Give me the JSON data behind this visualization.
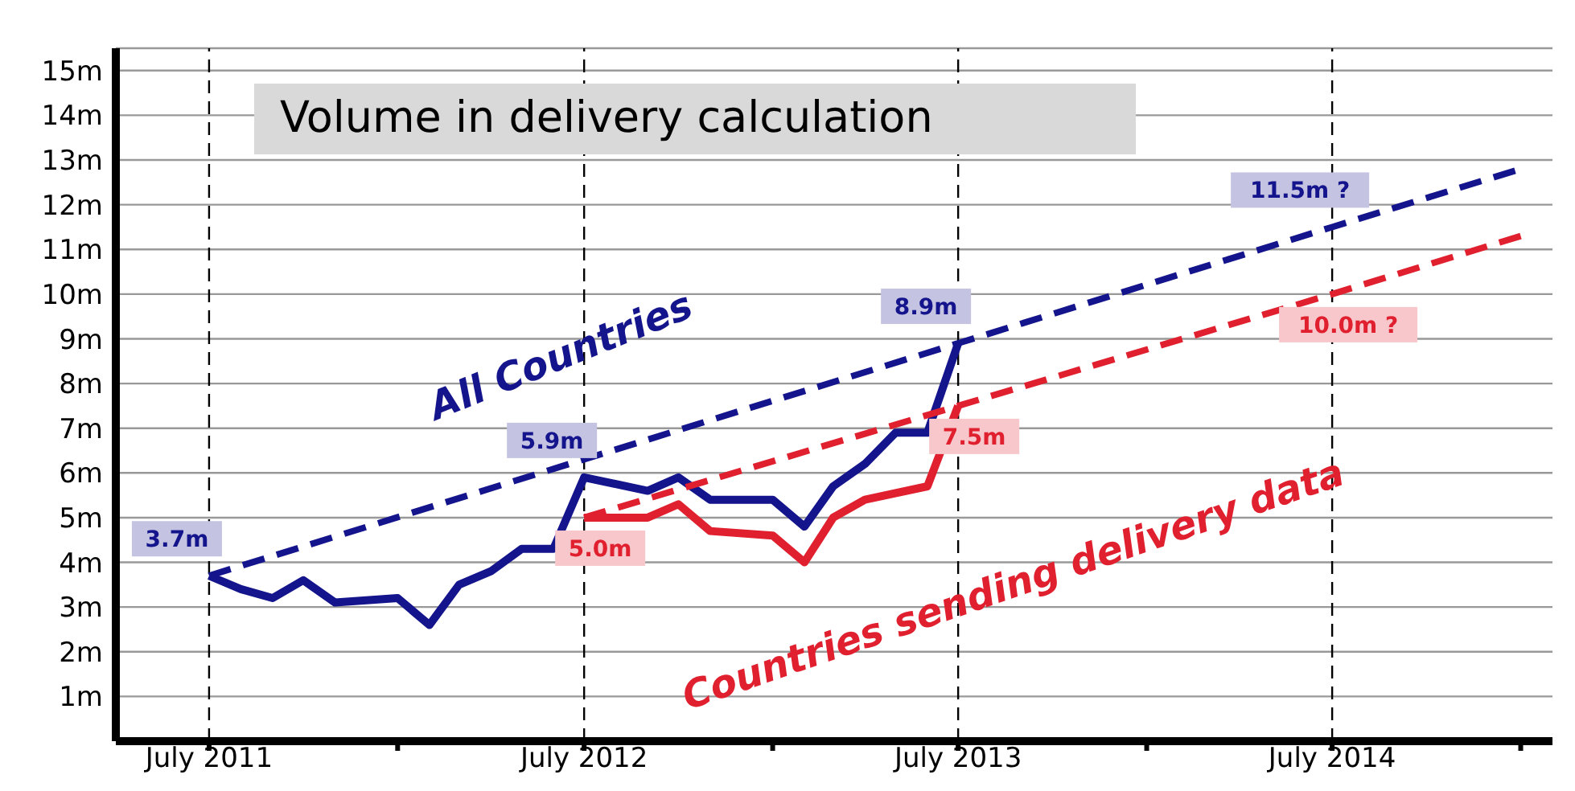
{
  "chart_data": {
    "type": "line",
    "title": "Volume in delivery calculation",
    "xlim": [
      "2011-04",
      "2015-02"
    ],
    "ylim": [
      0,
      15.5
    ],
    "xticks": [
      {
        "value": "2011-07",
        "label": "July 2011"
      },
      {
        "value": "2012-01",
        "label": null
      },
      {
        "value": "2012-07",
        "label": "July 2012"
      },
      {
        "value": "2013-01",
        "label": null
      },
      {
        "value": "2013-07",
        "label": "July 2013"
      },
      {
        "value": "2014-01",
        "label": null
      },
      {
        "value": "2014-07",
        "label": "July 2014"
      },
      {
        "value": "2015-01",
        "label": null
      }
    ],
    "yticks": [
      {
        "value": 1,
        "label": "1m"
      },
      {
        "value": 2,
        "label": "2m"
      },
      {
        "value": 3,
        "label": "3m"
      },
      {
        "value": 4,
        "label": "4m"
      },
      {
        "value": 5,
        "label": "5m"
      },
      {
        "value": 6,
        "label": "6m"
      },
      {
        "value": 7,
        "label": "7m"
      },
      {
        "value": 8,
        "label": "8m"
      },
      {
        "value": 9,
        "label": "9m"
      },
      {
        "value": 10,
        "label": "10m"
      },
      {
        "value": 11,
        "label": "11m"
      },
      {
        "value": 12,
        "label": "12m"
      },
      {
        "value": 13,
        "label": "13m"
      },
      {
        "value": 14,
        "label": "14m"
      },
      {
        "value": 15,
        "label": "15m"
      }
    ],
    "grid": "y",
    "marker": "none",
    "ref_lines": [
      {
        "axis": "x",
        "value": "2011-07",
        "color": "#000000",
        "line_style": "dashed"
      },
      {
        "axis": "x",
        "value": "2012-07",
        "color": "#000000",
        "line_style": "dashed"
      },
      {
        "axis": "x",
        "value": "2013-07",
        "color": "#000000",
        "line_style": "dashed"
      },
      {
        "axis": "x",
        "value": "2014-07",
        "color": "#000000",
        "line_style": "dashed"
      }
    ],
    "series": [
      {
        "name": "All Countries",
        "color": "#14148c",
        "line_style": "solid",
        "x": [
          "2011-07",
          "2011-08",
          "2011-09",
          "2011-10",
          "2011-11",
          "2012-01",
          "2012-02",
          "2012-03",
          "2012-04",
          "2012-05",
          "2012-06",
          "2012-07",
          "2012-09",
          "2012-10",
          "2012-11",
          "2013-01",
          "2013-02",
          "2013-03",
          "2013-04",
          "2013-05",
          "2013-06",
          "2013-07"
        ],
        "values": [
          3.7,
          3.4,
          3.2,
          3.6,
          3.1,
          3.2,
          2.6,
          3.5,
          3.8,
          4.3,
          4.3,
          5.9,
          5.6,
          5.9,
          5.4,
          5.4,
          4.8,
          5.7,
          6.2,
          6.9,
          6.9,
          8.9
        ],
        "value_labels": [
          "3.7m",
          null,
          null,
          null,
          null,
          null,
          null,
          null,
          null,
          null,
          null,
          "5.9m",
          null,
          null,
          null,
          null,
          null,
          null,
          null,
          null,
          null,
          "8.9m"
        ]
      },
      {
        "name": "Countries sending delivery data",
        "color": "#e0202e",
        "line_style": "solid",
        "x": [
          "2012-07",
          "2012-09",
          "2012-10",
          "2012-11",
          "2013-01",
          "2013-02",
          "2013-03",
          "2013-04",
          "2013-06",
          "2013-07"
        ],
        "values": [
          5.0,
          5.0,
          5.3,
          4.7,
          4.6,
          4.0,
          5.0,
          5.4,
          5.7,
          7.5
        ],
        "value_labels": [
          "5.0m",
          null,
          null,
          null,
          null,
          null,
          null,
          null,
          null,
          "7.5m"
        ]
      },
      {
        "type": "line",
        "color": "#14148c",
        "line_style": "dashed",
        "x": [
          "2011-07",
          "2013-07",
          "2014-07",
          "2015-01"
        ],
        "values": [
          3.7,
          8.9,
          11.5,
          12.8
        ],
        "value_labels": [
          null,
          null,
          "11.5m ?",
          null
        ]
      },
      {
        "type": "line",
        "color": "#e0202e",
        "line_style": "dashed",
        "x": [
          "2012-07",
          "2013-07",
          "2014-07",
          "2015-01"
        ],
        "values": [
          5.0,
          7.5,
          10.0,
          11.3
        ],
        "value_labels": [
          null,
          null,
          "10.0m ?",
          null
        ]
      }
    ]
  }
}
